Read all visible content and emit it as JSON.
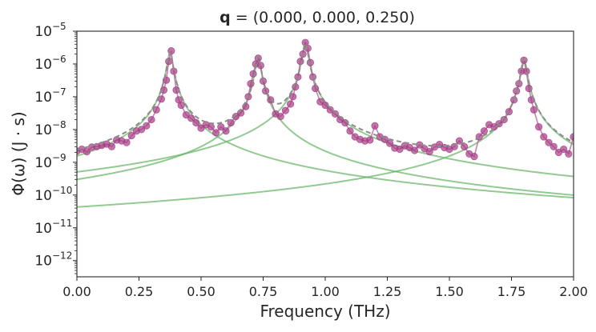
{
  "chart_data": {
    "type": "line",
    "title_bold": "q",
    "title_rest": " = (0.000, 0.000, 0.250)",
    "xlabel": "Frequency (THz)",
    "ylabel": "Φ(ω) (J · s)",
    "xlim": [
      0.0,
      2.0
    ],
    "ylim": [
      3.2e-13,
      1e-05
    ],
    "yscale": "log",
    "grid": false,
    "xticks": [
      0.0,
      0.25,
      0.5,
      0.75,
      1.0,
      1.25,
      1.5,
      1.75,
      2.0
    ],
    "xtick_labels": [
      "0.00",
      "0.25",
      "0.50",
      "0.75",
      "1.00",
      "1.25",
      "1.50",
      "1.75",
      "2.00"
    ],
    "yticks": [
      {
        "exp": -12,
        "base": "10",
        "power": "−12"
      },
      {
        "exp": -11,
        "base": "10",
        "power": "−11"
      },
      {
        "exp": -10,
        "base": "10",
        "power": "−10"
      },
      {
        "exp": -9,
        "base": "10",
        "power": "−9"
      },
      {
        "exp": -8,
        "base": "10",
        "power": "−8"
      },
      {
        "exp": -7,
        "base": "10",
        "power": "−7"
      },
      {
        "exp": -6,
        "base": "10",
        "power": "−6"
      },
      {
        "exp": -5,
        "base": "10",
        "power": "−5"
      }
    ],
    "colors": {
      "data": "#a63c84",
      "data_line": "#c06aa4",
      "fit_total": "#8c8c8c",
      "lorentzian": "#64b464"
    },
    "series": [
      {
        "kind": "data",
        "x": [
          0.0,
          0.02,
          0.04,
          0.06,
          0.08,
          0.1,
          0.12,
          0.14,
          0.16,
          0.18,
          0.2,
          0.22,
          0.24,
          0.26,
          0.28,
          0.3,
          0.32,
          0.34,
          0.35,
          0.36,
          0.37,
          0.38,
          0.39,
          0.4,
          0.41,
          0.42,
          0.44,
          0.46,
          0.48,
          0.5,
          0.52,
          0.54,
          0.56,
          0.58,
          0.6,
          0.62,
          0.64,
          0.66,
          0.68,
          0.69,
          0.7,
          0.71,
          0.72,
          0.73,
          0.74,
          0.75,
          0.76,
          0.78,
          0.8,
          0.82,
          0.84,
          0.86,
          0.87,
          0.88,
          0.89,
          0.9,
          0.91,
          0.92,
          0.93,
          0.94,
          0.95,
          0.96,
          0.98,
          1.0,
          1.02,
          1.04,
          1.06,
          1.08,
          1.1,
          1.12,
          1.14,
          1.16,
          1.18,
          1.2,
          1.22,
          1.24,
          1.26,
          1.28,
          1.3,
          1.32,
          1.34,
          1.36,
          1.38,
          1.4,
          1.42,
          1.44,
          1.46,
          1.48,
          1.5,
          1.52,
          1.54,
          1.56,
          1.58,
          1.6,
          1.62,
          1.64,
          1.66,
          1.68,
          1.7,
          1.72,
          1.74,
          1.76,
          1.77,
          1.78,
          1.79,
          1.8,
          1.81,
          1.82,
          1.83,
          1.84,
          1.86,
          1.88,
          1.9,
          1.92,
          1.94,
          1.96,
          1.98,
          2.0
        ],
        "y": [
          2.2e-09,
          2.5e-09,
          2.1e-09,
          2.9e-09,
          3e-09,
          3.3e-09,
          3.6e-09,
          3e-09,
          4.8e-09,
          4.5e-09,
          4e-09,
          6.5e-09,
          9e-09,
          1e-08,
          1.3e-08,
          2e-08,
          4e-08,
          8.5e-08,
          1.6e-07,
          3.2e-07,
          1.2e-06,
          2.5e-06,
          6e-07,
          1.6e-07,
          8e-08,
          5.5e-08,
          2.8e-08,
          2.2e-08,
          1.6e-08,
          1.1e-08,
          1.4e-08,
          1.2e-08,
          8e-09,
          1.2e-08,
          9e-09,
          1.6e-08,
          2.5e-08,
          3.2e-08,
          5e-08,
          1e-07,
          2.5e-07,
          5e-07,
          1e-06,
          1.5e-06,
          9e-07,
          3e-07,
          1.5e-07,
          8e-08,
          3e-08,
          2.5e-08,
          3.8e-08,
          6e-08,
          1e-07,
          2e-07,
          4e-07,
          1.2e-06,
          2e-06,
          4.5e-06,
          3e-06,
          1.1e-06,
          4e-07,
          1.8e-07,
          7e-08,
          5.5e-08,
          4e-08,
          3e-08,
          2e-08,
          1.6e-08,
          9e-09,
          6e-09,
          5e-09,
          4.5e-09,
          4.8e-09,
          1.3e-08,
          6e-09,
          5e-09,
          3.8e-09,
          2.7e-09,
          2.5e-09,
          3.2e-09,
          2.8e-09,
          2.3e-09,
          3.4e-09,
          2.6e-09,
          2.1e-09,
          2.9e-09,
          3.5e-09,
          2.8e-09,
          2.5e-09,
          3e-09,
          4.5e-09,
          3e-09,
          1.8e-09,
          1.5e-09,
          6e-09,
          9e-09,
          1.4e-08,
          1.2e-08,
          1.5e-08,
          2e-08,
          3.5e-08,
          8e-08,
          1.5e-07,
          2.5e-07,
          6e-07,
          1.3e-06,
          6e-07,
          1.8e-07,
          8e-08,
          4e-08,
          1.2e-08,
          6e-09,
          4e-09,
          3e-09,
          2e-09,
          2.5e-09,
          1.8e-09,
          6e-09
        ]
      },
      {
        "kind": "fit_total",
        "peaks": [
          {
            "center": 0.375,
            "height": 2.2e-06,
            "width": 0.01
          },
          {
            "center": 0.73,
            "height": 1.6e-06,
            "width": 0.01
          },
          {
            "center": 0.92,
            "height": 4.3e-06,
            "width": 0.01
          },
          {
            "center": 1.8,
            "height": 1.4e-06,
            "width": 0.01
          }
        ]
      }
    ]
  }
}
